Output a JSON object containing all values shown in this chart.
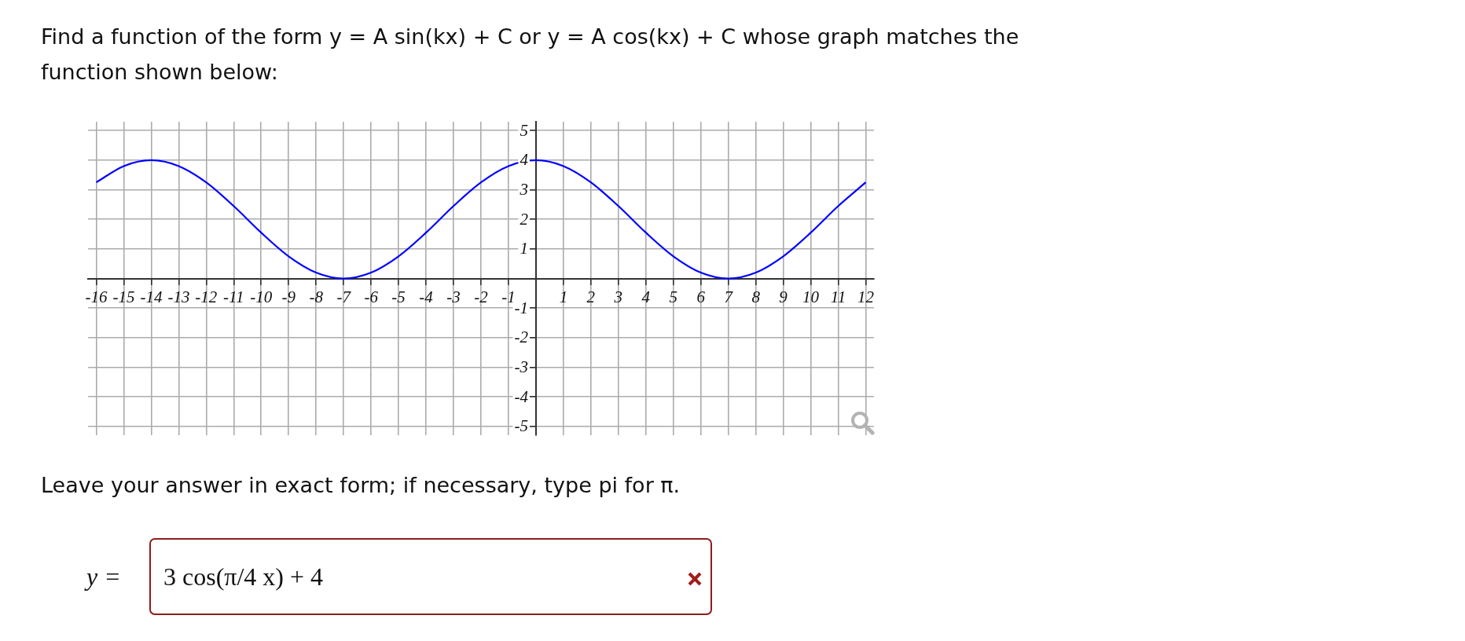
{
  "chart_data": {
    "type": "line",
    "title": "Find a function of the form y = A sin(kx) + C or y = A cos(kx) + C whose graph matches the function shown below:",
    "x": [
      -16,
      -15,
      -14,
      -13,
      -12,
      -11,
      -10,
      -9,
      -8,
      -7,
      -6,
      -5,
      -4,
      -3,
      -2,
      -1,
      0,
      1,
      2,
      3,
      4,
      5,
      6,
      7,
      8,
      9,
      10,
      11,
      12
    ],
    "series": [
      {
        "color": "#0000ff",
        "values": [
          3.25,
          3.8,
          4,
          3.8,
          3.25,
          2.45,
          1.55,
          0.75,
          0.2,
          0,
          0.2,
          0.75,
          1.55,
          2.45,
          3.25,
          3.8,
          4,
          3.8,
          3.25,
          2.45,
          1.55,
          0.75,
          0.2,
          0,
          0.2,
          0.75,
          1.55,
          2.45,
          3.25
        ]
      }
    ],
    "xlim": [
      -16.3,
      12.3
    ],
    "ylim": [
      -5.3,
      5.3
    ],
    "xticks": [
      -16,
      -15,
      -14,
      -13,
      -12,
      -11,
      -10,
      -9,
      -8,
      -7,
      -6,
      -5,
      -4,
      -3,
      -2,
      -1,
      1,
      2,
      3,
      4,
      5,
      6,
      7,
      8,
      9,
      10,
      11,
      12
    ],
    "yticks": [
      -5,
      -4,
      -3,
      -2,
      -1,
      1,
      2,
      3,
      4,
      5
    ],
    "grid": true,
    "marker": "none",
    "line_style": "solid",
    "annotations": [
      "Leave your answer in exact form; if necessary, type pi for π.",
      "y =",
      "3 cos(π/4 x) + 4"
    ]
  }
}
